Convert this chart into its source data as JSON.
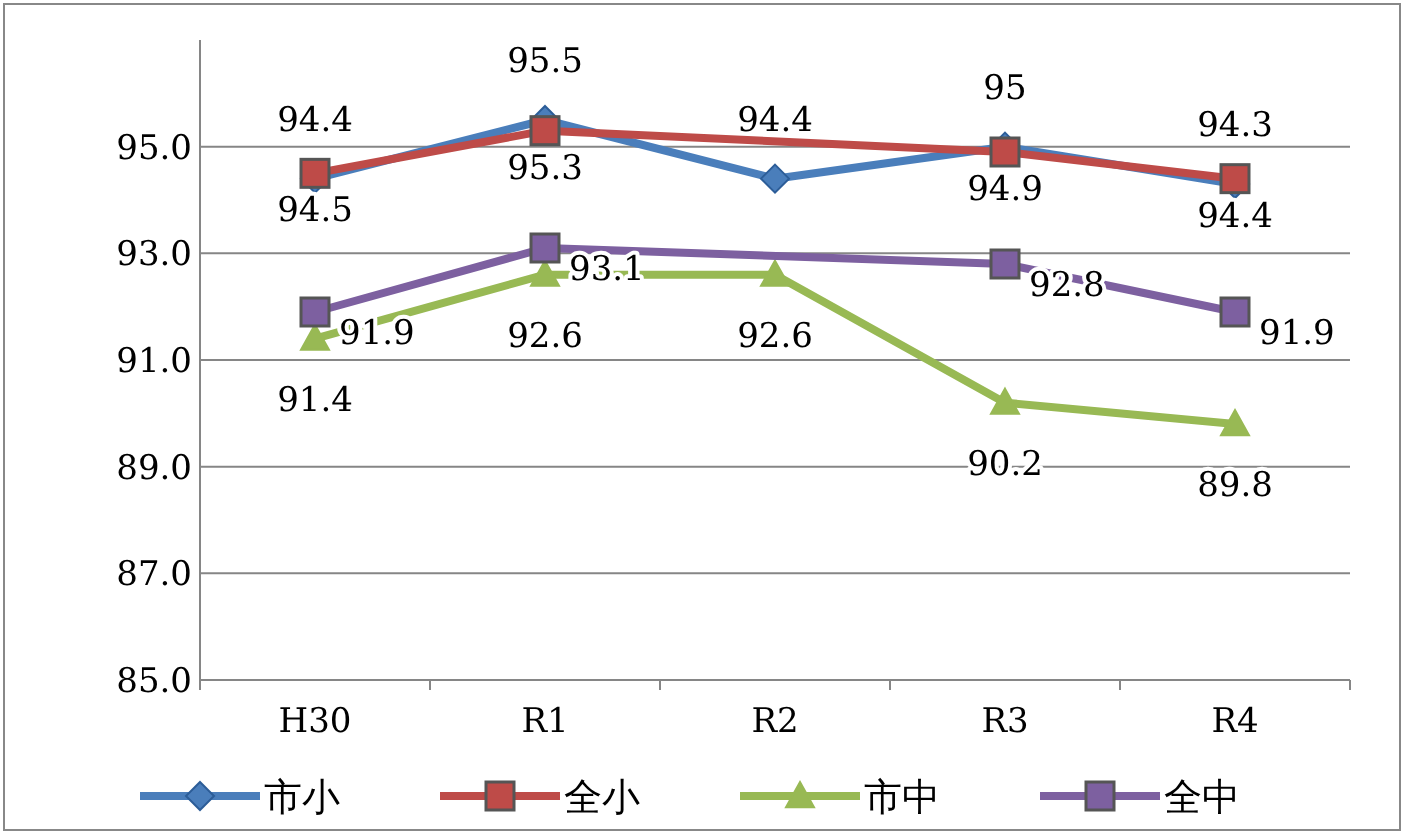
{
  "chart_data": {
    "type": "line",
    "categories": [
      "H30",
      "R1",
      "R2",
      "R3",
      "R4"
    ],
    "series": [
      {
        "name": "市小",
        "color": "#4a7ebb",
        "marker": "diamond",
        "values": [
          94.4,
          95.5,
          94.4,
          95,
          94.3
        ]
      },
      {
        "name": "全小",
        "color": "#be4b48",
        "marker": "square",
        "values": [
          94.5,
          95.3,
          null,
          94.9,
          94.4
        ]
      },
      {
        "name": "市中",
        "color": "#98b954",
        "marker": "triangle",
        "values": [
          91.4,
          92.6,
          92.6,
          90.2,
          89.8
        ]
      },
      {
        "name": "全中",
        "color": "#7d60a0",
        "marker": "square",
        "values": [
          91.9,
          93.1,
          null,
          92.8,
          91.9
        ]
      }
    ],
    "ylim": [
      85,
      97
    ],
    "yticks": [
      {
        "value": 85,
        "label": "85.0"
      },
      {
        "value": 87,
        "label": "87.0"
      },
      {
        "value": 89,
        "label": "89.0"
      },
      {
        "value": 91,
        "label": "91.0"
      },
      {
        "value": 93,
        "label": "93.0"
      },
      {
        "value": 95,
        "label": "95.0"
      }
    ],
    "grid": "y",
    "legend": "bottom",
    "data_labels": true
  }
}
